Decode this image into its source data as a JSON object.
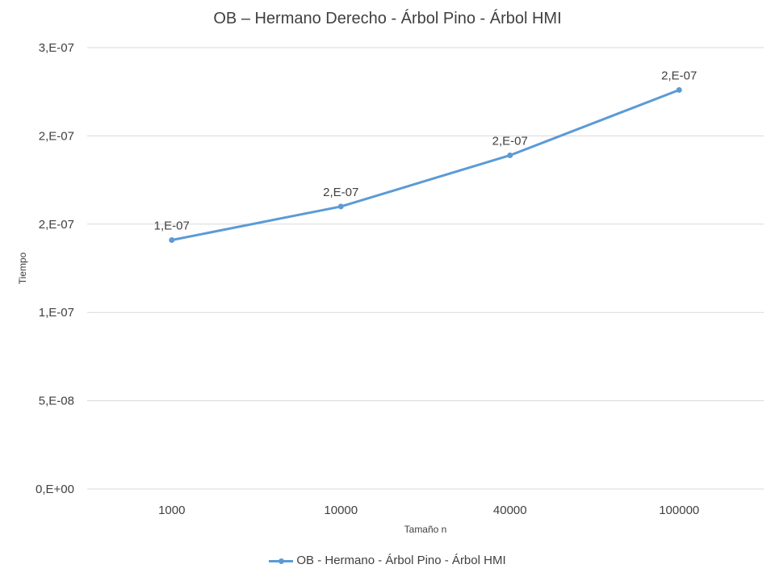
{
  "chart_data": {
    "type": "line",
    "title": "OB – Hermano Derecho - Árbol Pino - Árbol HMI",
    "xlabel": "Tamaño n",
    "ylabel": "Tiempo",
    "categories": [
      "1000",
      "10000",
      "40000",
      "100000"
    ],
    "y_tick_labels": [
      "0,E+00",
      "5,E-08",
      "1,E-07",
      "2,E-07",
      "2,E-07",
      "3,E-07"
    ],
    "y_ticks": [
      0,
      5e-08,
      1e-07,
      1.5e-07,
      2e-07,
      2.5e-07
    ],
    "ylim": [
      0,
      2.5e-07
    ],
    "grid": true,
    "legend_position": "bottom",
    "series": [
      {
        "name": "OB - Hermano - Árbol Pino - Árbol HMI",
        "values": [
          1.41e-07,
          1.6e-07,
          1.89e-07,
          2.26e-07
        ],
        "data_labels": [
          "1,E-07",
          "2,E-07",
          "2,E-07",
          "2,E-07"
        ],
        "color": "#5b9bd5"
      }
    ]
  }
}
